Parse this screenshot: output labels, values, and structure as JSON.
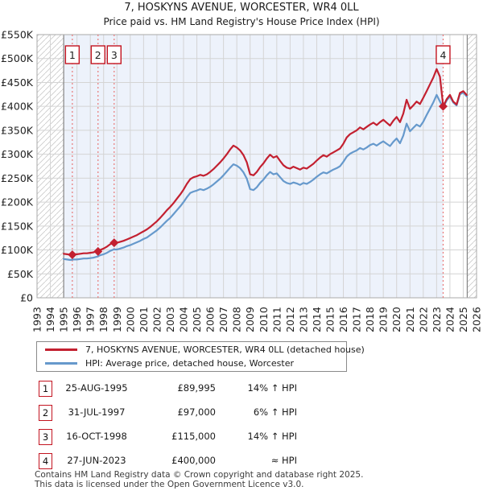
{
  "header": {
    "title": "7, HOSKYNS AVENUE, WORCESTER, WR4 0LL",
    "subtitle": "Price paid vs. HM Land Registry's House Price Index (HPI)"
  },
  "chart_data": {
    "type": "line",
    "x_range": [
      1993,
      2026
    ],
    "y_range": [
      0,
      550
    ],
    "x_tick_labels": [
      "1993",
      "1994",
      "1995",
      "1996",
      "1997",
      "1998",
      "1999",
      "2000",
      "2001",
      "2002",
      "2003",
      "2004",
      "2005",
      "2006",
      "2007",
      "2008",
      "2009",
      "2010",
      "2011",
      "2012",
      "2013",
      "2014",
      "2015",
      "2016",
      "2017",
      "2018",
      "2019",
      "2020",
      "2021",
      "2022",
      "2023",
      "2024",
      "2025",
      "2026"
    ],
    "y_tick_values": [
      0,
      50,
      100,
      150,
      200,
      250,
      300,
      350,
      400,
      450,
      500,
      550
    ],
    "y_tick_labels": [
      "£0",
      "£50K",
      "£100K",
      "£150K",
      "£200K",
      "£250K",
      "£300K",
      "£350K",
      "£400K",
      "£450K",
      "£500K",
      "£550K"
    ],
    "units": "GBP thousands",
    "shaded_span": [
      1995,
      2023.49
    ],
    "hatched_spans": [
      [
        1993,
        1995
      ],
      [
        2025.3,
        2026
      ]
    ],
    "colors": {
      "property_line": "#c32030",
      "hpi_line": "#6699cc",
      "sale_dash": "#e87878",
      "shade": "#edf2fb",
      "grid": "#d4d4d4",
      "hatch": "#c9c9c9",
      "boundary": "#858585"
    },
    "series": [
      {
        "name": "7, HOSKYNS AVENUE, WORCESTER, WR4 0LL (detached house)",
        "color": "#c32030",
        "x_start": 1995.0,
        "x_step": 0.25,
        "values": [
          92,
          91,
          90,
          91,
          91,
          92,
          93,
          93,
          94,
          95,
          98,
          100,
          103,
          107,
          112,
          115,
          115,
          117,
          119,
          122,
          125,
          128,
          131,
          135,
          139,
          143,
          148,
          154,
          160,
          167,
          175,
          183,
          190,
          198,
          207,
          216,
          226,
          238,
          248,
          252,
          254,
          257,
          255,
          258,
          263,
          269,
          276,
          283,
          291,
          300,
          310,
          318,
          314,
          308,
          298,
          283,
          258,
          256,
          263,
          273,
          281,
          291,
          299,
          293,
          296,
          286,
          277,
          272,
          270,
          274,
          271,
          268,
          272,
          270,
          275,
          280,
          287,
          293,
          298,
          295,
          300,
          304,
          308,
          312,
          322,
          335,
          342,
          346,
          350,
          356,
          352,
          357,
          362,
          366,
          361,
          367,
          372,
          366,
          360,
          370,
          378,
          367,
          385,
          414,
          395,
          402,
          410,
          405,
          418,
          432,
          446,
          460,
          478,
          462,
          400,
          415,
          424,
          410,
          404,
          428,
          432,
          424
        ]
      },
      {
        "name": "HPI: Average price, detached house, Worcester",
        "color": "#6699cc",
        "x_start": 1995.0,
        "x_step": 0.25,
        "values": [
          81,
          80,
          79,
          80,
          80,
          81,
          82,
          82,
          83,
          84,
          86,
          89,
          91,
          94,
          98,
          101,
          101,
          103,
          105,
          108,
          110,
          113,
          116,
          119,
          123,
          126,
          131,
          136,
          141,
          147,
          154,
          161,
          167,
          175,
          183,
          191,
          200,
          210,
          219,
          222,
          224,
          227,
          225,
          228,
          232,
          237,
          243,
          249,
          256,
          264,
          272,
          279,
          276,
          271,
          262,
          249,
          227,
          225,
          231,
          240,
          247,
          256,
          263,
          258,
          260,
          252,
          244,
          240,
          238,
          241,
          239,
          236,
          240,
          238,
          242,
          247,
          253,
          258,
          262,
          260,
          264,
          268,
          271,
          275,
          284,
          295,
          301,
          305,
          308,
          313,
          310,
          314,
          319,
          322,
          318,
          323,
          327,
          322,
          317,
          326,
          333,
          323,
          339,
          364,
          348,
          355,
          362,
          358,
          368,
          382,
          395,
          408,
          424,
          410,
          398,
          412,
          421,
          408,
          402,
          425,
          429,
          421
        ]
      }
    ],
    "sales": [
      {
        "label": "1",
        "year": 1995.65,
        "price_k": 89.995
      },
      {
        "label": "2",
        "year": 1997.58,
        "price_k": 97
      },
      {
        "label": "3",
        "year": 1998.79,
        "price_k": 115
      },
      {
        "label": "4",
        "year": 2023.49,
        "price_k": 400
      }
    ]
  },
  "legend": {
    "property_label": "7, HOSKYNS AVENUE, WORCESTER, WR4 0LL (detached house)",
    "hpi_label": "HPI: Average price, detached house, Worcester"
  },
  "table": {
    "rows": [
      {
        "num": "1",
        "date": "25-AUG-1995",
        "price": "£89,995",
        "vs_hpi": "14% ↑ HPI"
      },
      {
        "num": "2",
        "date": "31-JUL-1997",
        "price": "£97,000",
        "vs_hpi": "6% ↑ HPI"
      },
      {
        "num": "3",
        "date": "16-OCT-1998",
        "price": "£115,000",
        "vs_hpi": "14% ↑ HPI"
      },
      {
        "num": "4",
        "date": "27-JUN-2023",
        "price": "£400,000",
        "vs_hpi": "≈ HPI"
      }
    ]
  },
  "footer": {
    "line1": "Contains HM Land Registry data © Crown copyright and database right 2025.",
    "line2": "This data is licensed under the Open Government Licence v3.0."
  }
}
